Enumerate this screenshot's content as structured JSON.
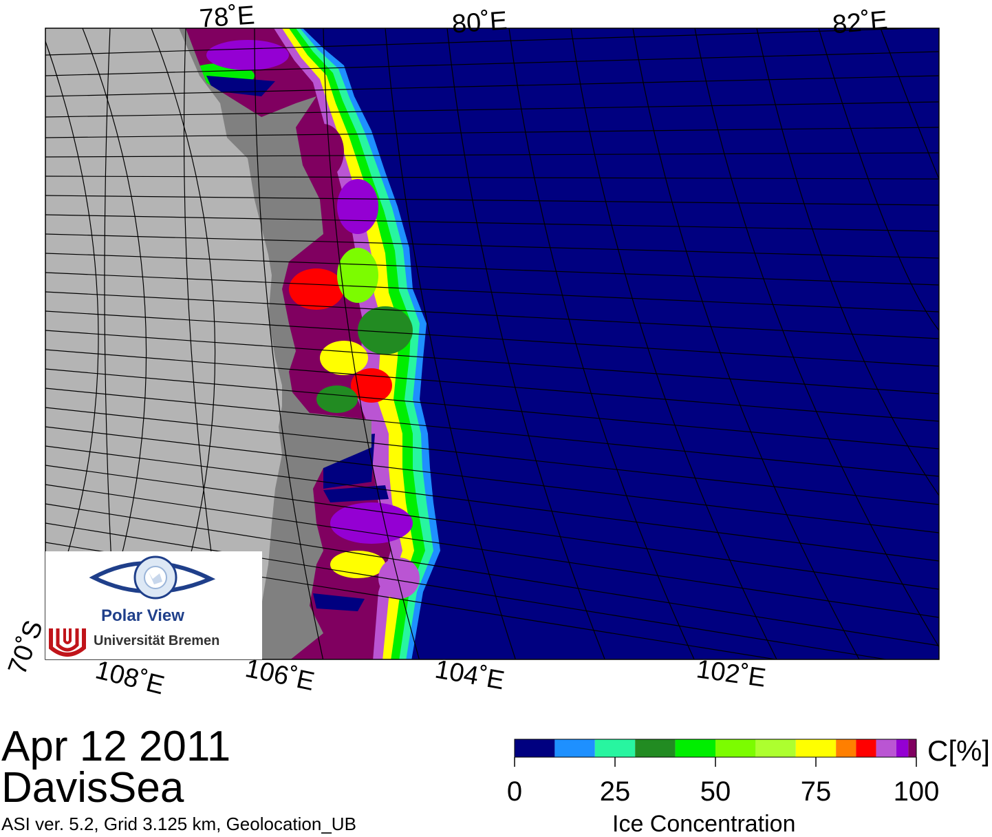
{
  "map": {
    "lon_labels_top": [
      "78˚E",
      "80˚E",
      "82˚E"
    ],
    "lon_labels_bottom": [
      "108˚E",
      "106˚E",
      "104˚E",
      "102˚E"
    ],
    "lat_label": "70˚S",
    "colors": {
      "open_water": "#000080",
      "land": "#b4b4b4",
      "shelf_ice": "#808080",
      "grid": "#000000"
    }
  },
  "logo": {
    "title": "Polar View",
    "subtitle": "Universität Bremen",
    "colors": {
      "eye": "#1f3f8a",
      "university": "#c0141a"
    }
  },
  "info": {
    "date": "Apr 12 2011",
    "region": "DavisSea",
    "meta": "ASI ver. 5.2,  Grid 3.125 km, Geolocation_UB"
  },
  "colorbar": {
    "unit": "C[%]",
    "title": "Ice Concentration",
    "tick_labels": [
      "0",
      "25",
      "50",
      "75",
      "100"
    ],
    "tick_values": [
      0,
      25,
      50,
      75,
      100
    ],
    "segments": [
      {
        "from": 0,
        "to": 10,
        "color": "#000080"
      },
      {
        "from": 10,
        "to": 20,
        "color": "#1e90ff"
      },
      {
        "from": 20,
        "to": 30,
        "color": "#28f5a0"
      },
      {
        "from": 30,
        "to": 40,
        "color": "#228b22"
      },
      {
        "from": 40,
        "to": 50,
        "color": "#00ee00"
      },
      {
        "from": 50,
        "to": 60,
        "color": "#7cfc00"
      },
      {
        "from": 60,
        "to": 70,
        "color": "#adff2f"
      },
      {
        "from": 70,
        "to": 80,
        "color": "#ffff00"
      },
      {
        "from": 80,
        "to": 85,
        "color": "#ff7f00"
      },
      {
        "from": 85,
        "to": 90,
        "color": "#ff0000"
      },
      {
        "from": 90,
        "to": 95,
        "color": "#ba55d3"
      },
      {
        "from": 95,
        "to": 98,
        "color": "#9400d3"
      },
      {
        "from": 98,
        "to": 100,
        "color": "#800060"
      }
    ]
  }
}
